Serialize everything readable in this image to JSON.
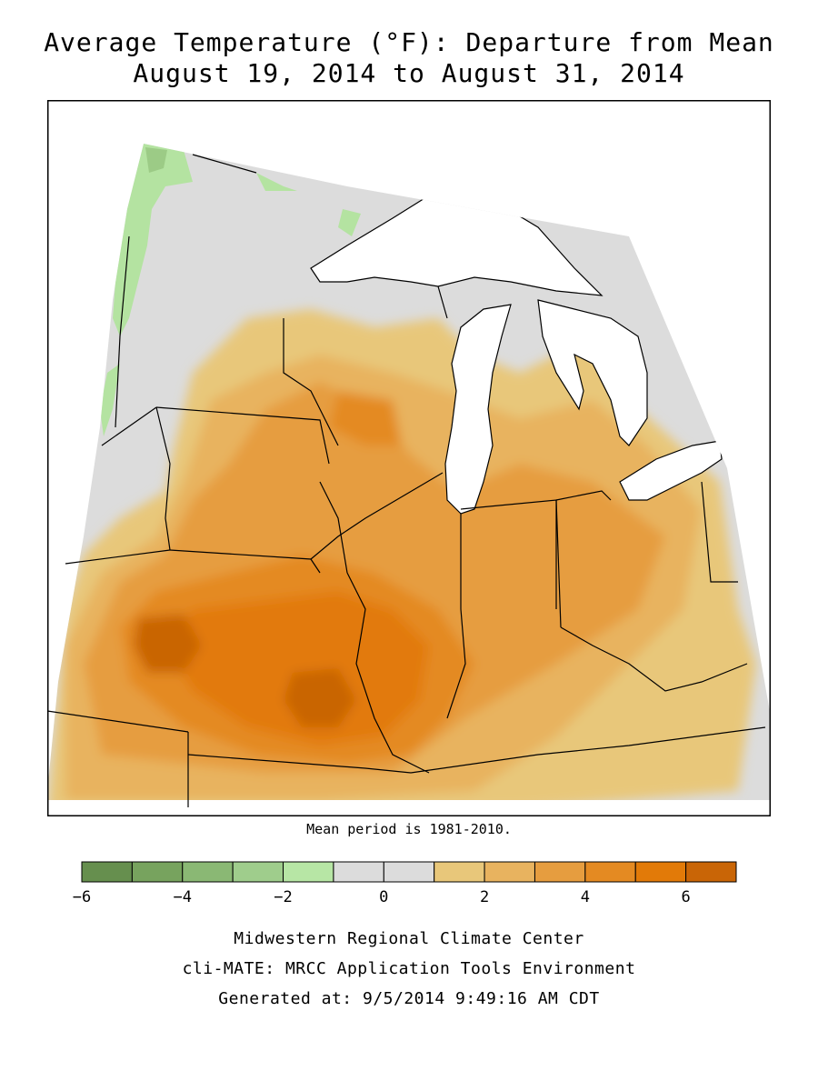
{
  "title": {
    "line1": "Average Temperature (°F): Departure from Mean",
    "line2": "August 19, 2014 to August 31, 2014"
  },
  "map": {
    "region": "Midwest United States",
    "colors": {
      "neutral": "#dcdcdc",
      "water": "#ffffff",
      "pos1": "#e8c77a",
      "pos2": "#e8b35f",
      "pos3": "#e69d3f",
      "pos4": "#e48a22",
      "pos5": "#e27a08",
      "pos6": "#c96506",
      "neg1": "#b4e3a1",
      "neg2": "#9ccb86",
      "neg3": "#86b36f"
    }
  },
  "note": "Mean period is 1981-2010.",
  "legend": {
    "bins": [
      {
        "from": -6,
        "to": -5,
        "color": "#668f4e"
      },
      {
        "from": -5,
        "to": -4,
        "color": "#77a35e"
      },
      {
        "from": -4,
        "to": -3,
        "color": "#8ab874"
      },
      {
        "from": -3,
        "to": -2,
        "color": "#9fcd8c"
      },
      {
        "from": -2,
        "to": -1,
        "color": "#b7e6a5"
      },
      {
        "from": -1,
        "to": 0,
        "color": "#dcdcdc"
      },
      {
        "from": 0,
        "to": 1,
        "color": "#dcdcdc"
      },
      {
        "from": 1,
        "to": 2,
        "color": "#e8c77a"
      },
      {
        "from": 2,
        "to": 3,
        "color": "#e8b35f"
      },
      {
        "from": 3,
        "to": 4,
        "color": "#e69d3f"
      },
      {
        "from": 4,
        "to": 5,
        "color": "#e48a22"
      },
      {
        "from": 5,
        "to": 6,
        "color": "#e27a08"
      },
      {
        "from": 6,
        "to": 7,
        "color": "#c96506"
      }
    ],
    "ticks": [
      "−6",
      "−4",
      "−2",
      "0",
      "2",
      "4",
      "6"
    ],
    "tick_values": [
      -6,
      -4,
      -2,
      0,
      2,
      4,
      6
    ]
  },
  "footer": {
    "line1": "Midwestern Regional Climate Center",
    "line2": "cli-MATE: MRCC Application Tools Environment",
    "line3": "Generated at: 9/5/2014 9:49:16 AM CDT"
  }
}
